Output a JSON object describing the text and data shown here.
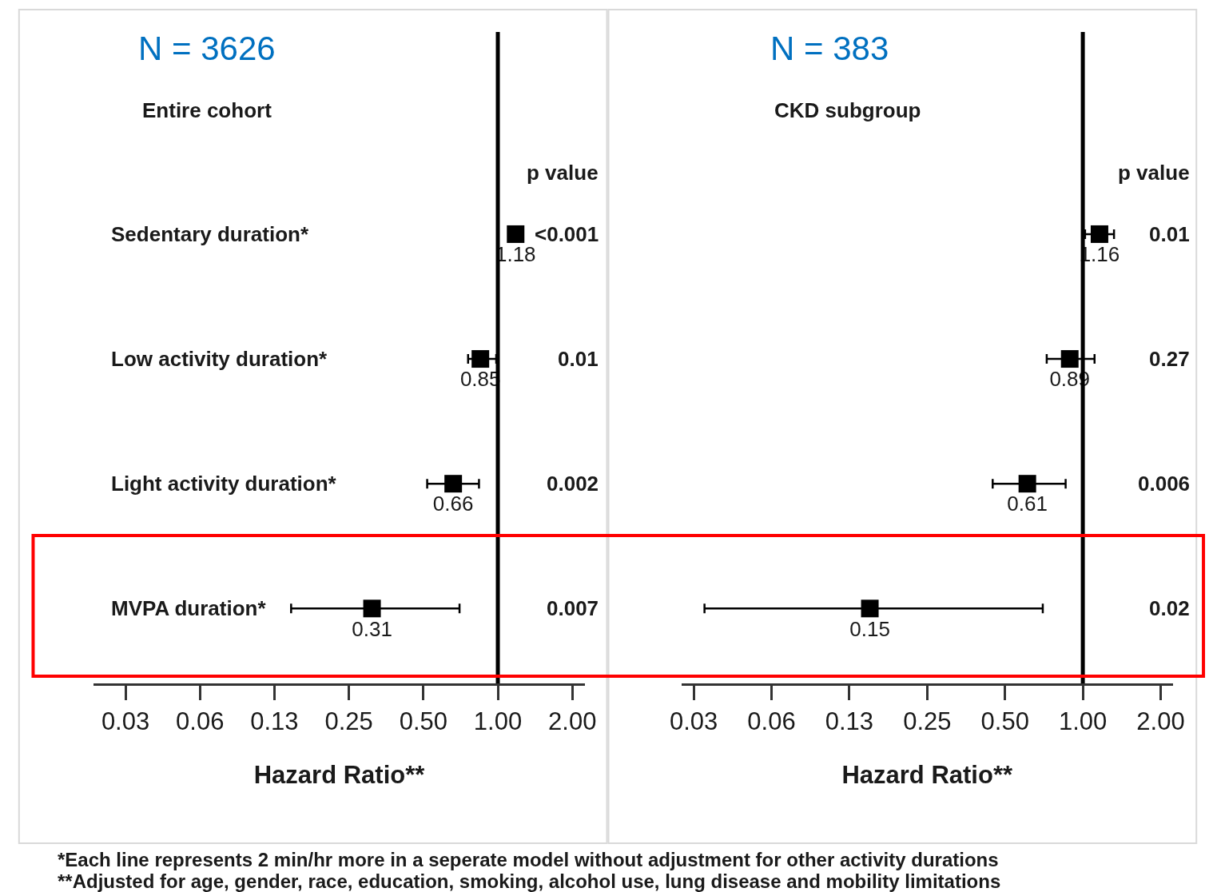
{
  "chart_data": [
    {
      "type": "scatter",
      "title": "N = 3626",
      "subtitle": "Entire cohort",
      "orientation": "horizontal",
      "marker": "square",
      "data_labels": true,
      "log": "x",
      "categories": [
        "Sedentary duration*",
        "Low activity duration*",
        "Light activity duration*",
        "MVPA duration*"
      ],
      "series": [
        {
          "color": "#000000",
          "values": [
            1.18,
            0.85,
            0.66,
            0.31
          ],
          "errors": [
            null,
            [
              0.758,
              0.985
            ],
            [
              0.518,
              0.839
            ],
            [
              0.146,
              0.7
            ]
          ]
        }
      ],
      "xlabel": "Hazard Ratio**",
      "xlim": [
        0.0232,
        2.25
      ],
      "xticks": [
        {
          "value": 0.03125,
          "label": "0.03"
        },
        {
          "value": 0.0625,
          "label": "0.06"
        },
        {
          "value": 0.125,
          "label": "0.13"
        },
        {
          "value": 0.25,
          "label": "0.25"
        },
        {
          "value": 0.5,
          "label": "0.50"
        },
        {
          "value": 1,
          "label": "1.00"
        },
        {
          "value": 2,
          "label": "2.00"
        }
      ],
      "ref_lines": [
        {
          "axis": "x",
          "value": 1,
          "color": "#000000"
        }
      ],
      "annotations": [
        "p value",
        "<0.001",
        "0.01",
        "0.002",
        "0.007",
        "*Each line represents 2 min/hr more in a seperate model without adjustment for other activity durations",
        "**Adjusted for age, gender, race, education, smoking, alcohol use, lung disease and mobility limitations"
      ]
    },
    {
      "type": "scatter",
      "title": "N = 383",
      "subtitle": "CKD subgroup",
      "orientation": "horizontal",
      "marker": "square",
      "data_labels": true,
      "log": "x",
      "tick_labels": "x",
      "categories": [
        null,
        null,
        null,
        null
      ],
      "series": [
        {
          "color": "#000000",
          "values": [
            1.16,
            0.89,
            0.61,
            0.15
          ],
          "errors": [
            [
              1.02,
              1.32
            ],
            [
              0.725,
              1.11
            ],
            [
              0.448,
              0.858
            ],
            [
              0.0344,
              0.7
            ]
          ]
        }
      ],
      "xlabel": "Hazard Ratio**",
      "xlim": [
        0.028,
        2.23
      ],
      "xticks": [
        {
          "value": 0.03125,
          "label": "0.03"
        },
        {
          "value": 0.0625,
          "label": "0.06"
        },
        {
          "value": 0.125,
          "label": "0.13"
        },
        {
          "value": 0.25,
          "label": "0.25"
        },
        {
          "value": 0.5,
          "label": "0.50"
        },
        {
          "value": 1,
          "label": "1.00"
        },
        {
          "value": 2,
          "label": "2.00"
        }
      ],
      "ref_lines": [
        {
          "axis": "x",
          "value": 1,
          "color": "#000000"
        }
      ],
      "annotations": [
        "p value",
        "0.01",
        "0.27",
        "0.006",
        "0.02"
      ]
    }
  ]
}
